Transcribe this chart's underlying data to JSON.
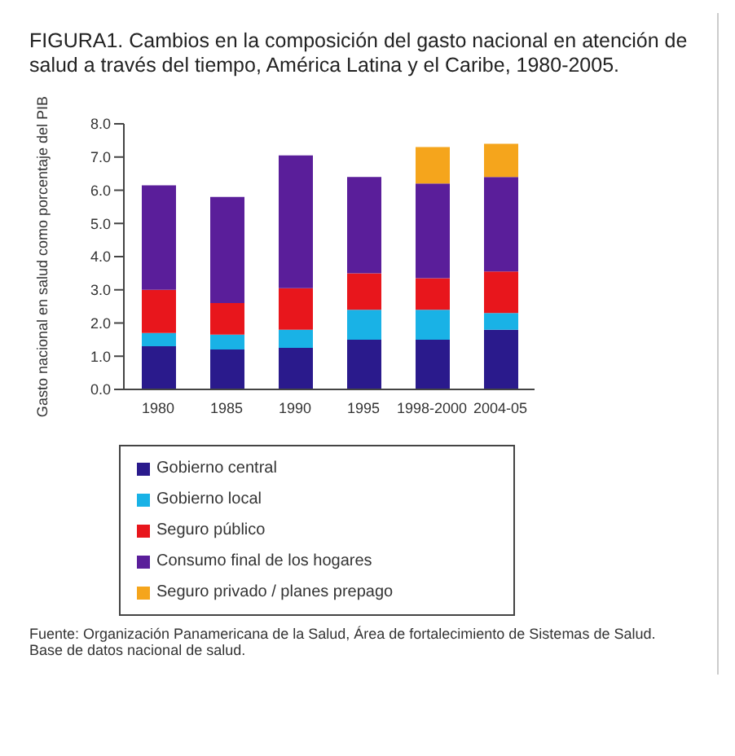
{
  "chart_data": {
    "type": "bar",
    "title": "FIGURA1. Cambios en la composición del gasto nacional en atención de salud a través del tiempo, América Latina y el Caribe, 1980-2005.",
    "ylabel": "Gasto nacional en salud como porcentaje del PIB",
    "categories": [
      "1980",
      "1985",
      "1990",
      "1995",
      "1998-2000",
      "2004-05"
    ],
    "series": [
      {
        "name": "Gobierno central",
        "color": "#2a1a8c",
        "values": [
          1.3,
          1.2,
          1.25,
          1.5,
          1.5,
          1.8
        ]
      },
      {
        "name": "Gobierno local",
        "color": "#19b2e6",
        "values": [
          0.4,
          0.45,
          0.55,
          0.9,
          0.9,
          0.5
        ]
      },
      {
        "name": "Seguro público",
        "color": "#e8161c",
        "values": [
          1.3,
          0.95,
          1.25,
          1.1,
          0.95,
          1.25
        ]
      },
      {
        "name": "Consumo final de los hogares",
        "color": "#5a1e9a",
        "values": [
          3.15,
          3.2,
          4.0,
          2.9,
          2.85,
          2.85
        ]
      },
      {
        "name": "Seguro privado / planes prepago",
        "color": "#f5a51c",
        "values": [
          0,
          0,
          0,
          0,
          1.1,
          1.0
        ]
      }
    ],
    "stacked": true,
    "ylim": [
      0,
      8
    ],
    "yticks": [
      {
        "value": 0,
        "label": "0.0"
      },
      {
        "value": 1,
        "label": "1.0"
      },
      {
        "value": 2,
        "label": "2.0"
      },
      {
        "value": 3,
        "label": "3.0"
      },
      {
        "value": 4,
        "label": "4.0"
      },
      {
        "value": 5,
        "label": "5.0"
      },
      {
        "value": 6,
        "label": "6.0"
      },
      {
        "value": 7,
        "label": "7.0"
      },
      {
        "value": 8,
        "label": "8.0"
      }
    ],
    "grid": false,
    "legend": "bottom",
    "annotations": [
      "Fuente: Organización Panamericana de la Salud, Área de fortalecimiento de Sistemas de Salud. Base de datos nacional de salud."
    ]
  }
}
